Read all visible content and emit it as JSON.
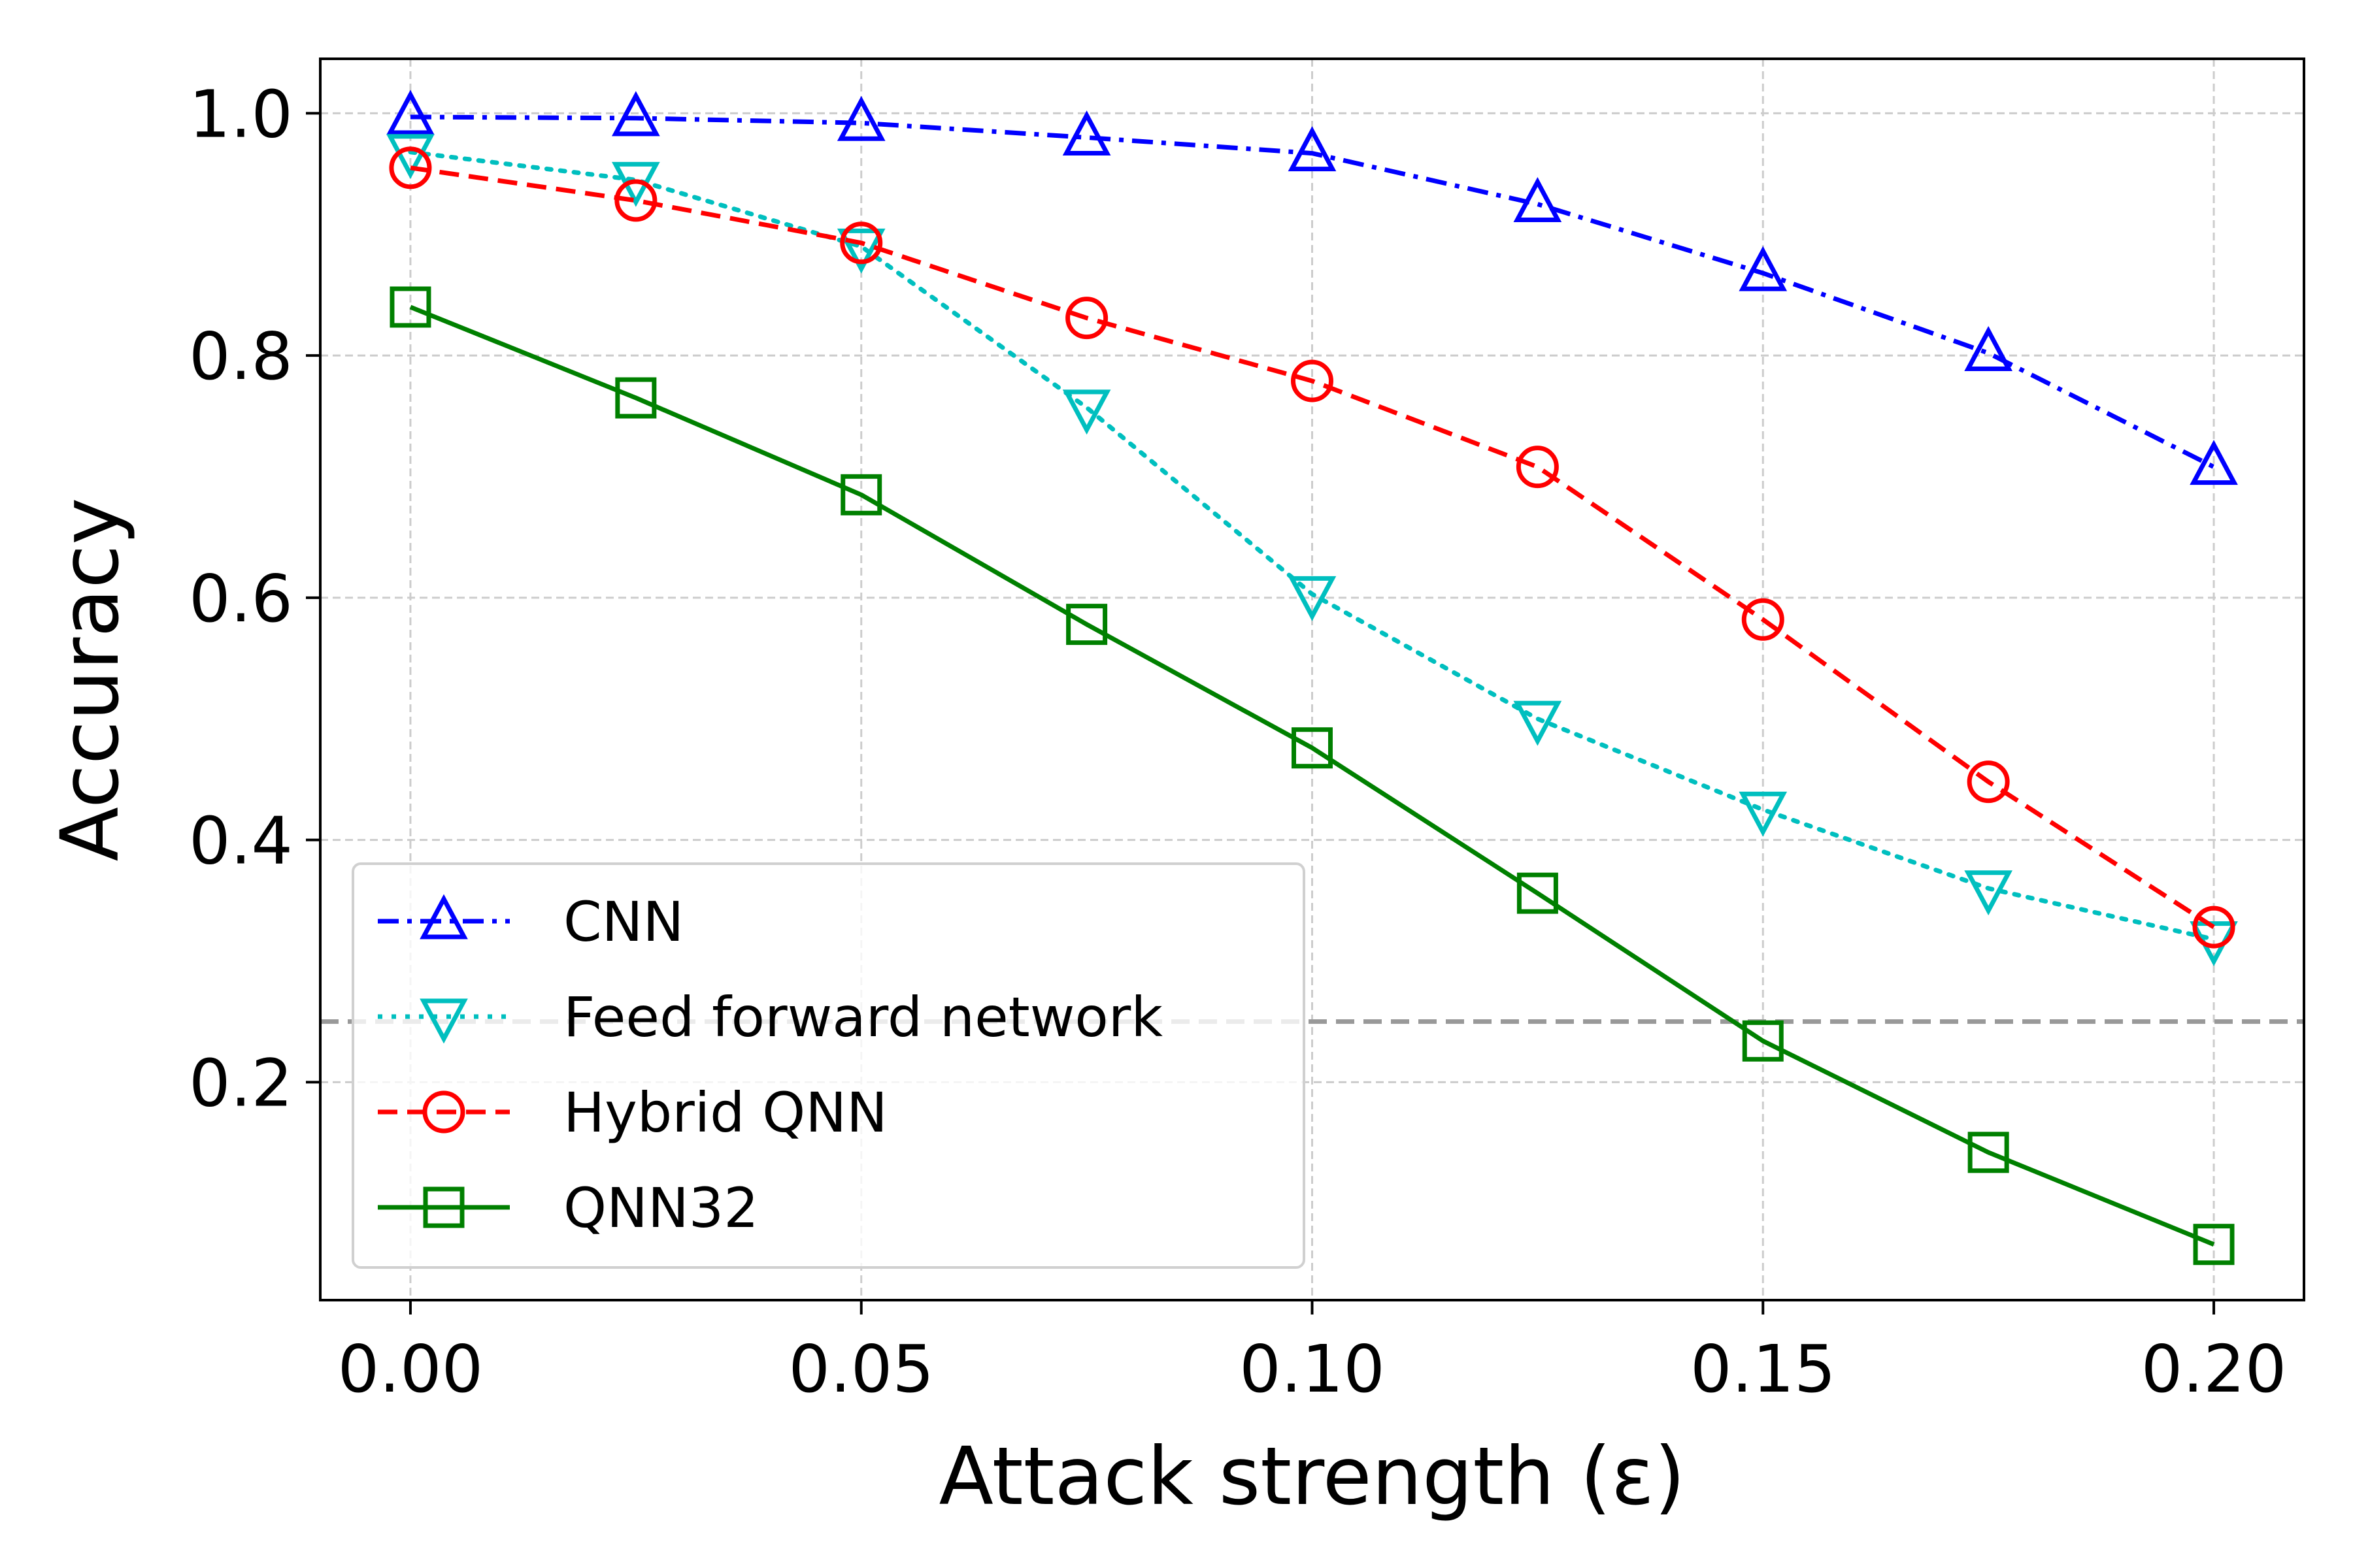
{
  "chart_data": {
    "type": "line",
    "title": "",
    "xlabel": "Attack strength (ε)",
    "ylabel": "Accuracy",
    "xlim": [
      -0.01,
      0.21
    ],
    "ylim": [
      0.02,
      1.045
    ],
    "xticks": [
      0.0,
      0.05,
      0.1,
      0.15,
      0.2
    ],
    "xtick_labels": [
      "0.00",
      "0.05",
      "0.10",
      "0.15",
      "0.20"
    ],
    "yticks": [
      0.2,
      0.4,
      0.6,
      0.8,
      1.0
    ],
    "ytick_labels": [
      "0.2",
      "0.4",
      "0.6",
      "0.8",
      "1.0"
    ],
    "grid": true,
    "legend_position": "lower-left",
    "x": [
      0.0,
      0.025,
      0.05,
      0.075,
      0.1,
      0.125,
      0.15,
      0.175,
      0.2
    ],
    "reference_line": {
      "y": 0.25,
      "color": "#999999",
      "style": "dashed"
    },
    "series": [
      {
        "name": "CNN",
        "color": "#0000ff",
        "line_style": "dashdot",
        "marker": "triangle-up",
        "values": [
          0.997,
          0.996,
          0.992,
          0.98,
          0.967,
          0.925,
          0.868,
          0.802,
          0.708
        ]
      },
      {
        "name": "Feed forward network",
        "color": "#00bfbf",
        "line_style": "dotted",
        "marker": "triangle-down",
        "values": [
          0.968,
          0.945,
          0.89,
          0.757,
          0.603,
          0.5,
          0.425,
          0.36,
          0.318
        ]
      },
      {
        "name": "Hybrid QNN",
        "color": "#ff0000",
        "line_style": "dashed",
        "marker": "circle",
        "values": [
          0.955,
          0.928,
          0.893,
          0.831,
          0.779,
          0.708,
          0.582,
          0.448,
          0.328
        ]
      },
      {
        "name": "QNN32",
        "color": "#008000",
        "line_style": "solid",
        "marker": "square",
        "values": [
          0.84,
          0.765,
          0.685,
          0.578,
          0.476,
          0.356,
          0.234,
          0.142,
          0.066
        ]
      }
    ]
  }
}
